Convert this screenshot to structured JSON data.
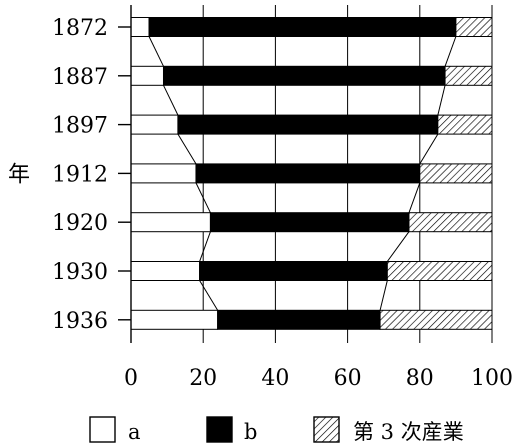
{
  "chart_data": {
    "type": "bar",
    "orientation": "horizontal",
    "stacked": true,
    "percent": true,
    "ylabel": "年",
    "categories": [
      "1872",
      "1887",
      "1897",
      "1912",
      "1920",
      "1930",
      "1936"
    ],
    "series": [
      {
        "name": "a",
        "values": [
          5,
          9,
          13,
          18,
          22,
          19,
          24
        ],
        "fill": "white",
        "color": "#ffffff"
      },
      {
        "name": "b",
        "values": [
          85,
          78,
          72,
          62,
          55,
          52,
          45
        ],
        "fill": "solid",
        "color": "#000000"
      },
      {
        "name": "第 3 次産業",
        "values": [
          10,
          13,
          15,
          20,
          23,
          29,
          31
        ],
        "fill": "hatch",
        "color": "#000000"
      }
    ],
    "xlim": [
      0,
      100
    ],
    "xticks": [
      0,
      20,
      40,
      60,
      80,
      100
    ],
    "grid": "vertical",
    "connector_lines": true,
    "legend_position": "bottom"
  }
}
